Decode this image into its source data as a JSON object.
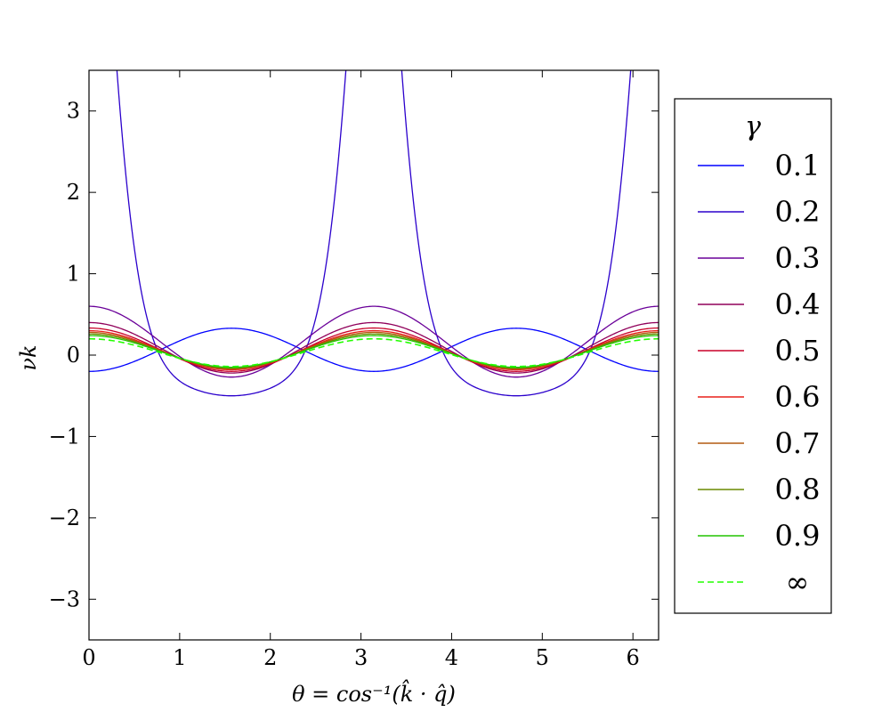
{
  "chart_data": {
    "type": "line",
    "xlabel": "θ = cos⁻¹(k̂ · q̂)",
    "ylabel": "νk",
    "xlim": [
      0,
      6.283
    ],
    "ylim": [
      -3.5,
      3.5
    ],
    "xticks": [
      "0",
      "1",
      "2",
      "3",
      "4",
      "5",
      "6"
    ],
    "yticks": [
      "−3",
      "−2",
      "−1",
      "0",
      "1",
      "2",
      "3"
    ],
    "grid": false,
    "legend": {
      "title": "γ",
      "placement": "outside-right"
    },
    "series": [
      {
        "name": "0.1",
        "color": "#0000ff",
        "dash": false,
        "edge": -0.2,
        "mid": 0.33
      },
      {
        "name": "0.2",
        "color": "#2b00cc",
        "dash": false,
        "edge": 9.0,
        "mid": -0.5
      },
      {
        "name": "0.3",
        "color": "#6a0099",
        "dash": false,
        "edge": 0.6,
        "mid": -0.27
      },
      {
        "name": "0.4",
        "color": "#90005a",
        "dash": false,
        "edge": 0.4,
        "mid": -0.22
      },
      {
        "name": "0.5",
        "color": "#c80028",
        "dash": false,
        "edge": 0.333,
        "mid": -0.2
      },
      {
        "name": "0.6",
        "color": "#e8201a",
        "dash": false,
        "edge": 0.3,
        "mid": -0.18
      },
      {
        "name": "0.7",
        "color": "#b45a10",
        "dash": false,
        "edge": 0.28,
        "mid": -0.17
      },
      {
        "name": "0.8",
        "color": "#6a8a00",
        "dash": false,
        "edge": 0.26,
        "mid": -0.16
      },
      {
        "name": "0.9",
        "color": "#22c400",
        "dash": false,
        "edge": 0.24,
        "mid": -0.15
      },
      {
        "name": "∞",
        "color": "#22ff00",
        "dash": true,
        "edge": 0.2,
        "mid": -0.14
      }
    ]
  }
}
